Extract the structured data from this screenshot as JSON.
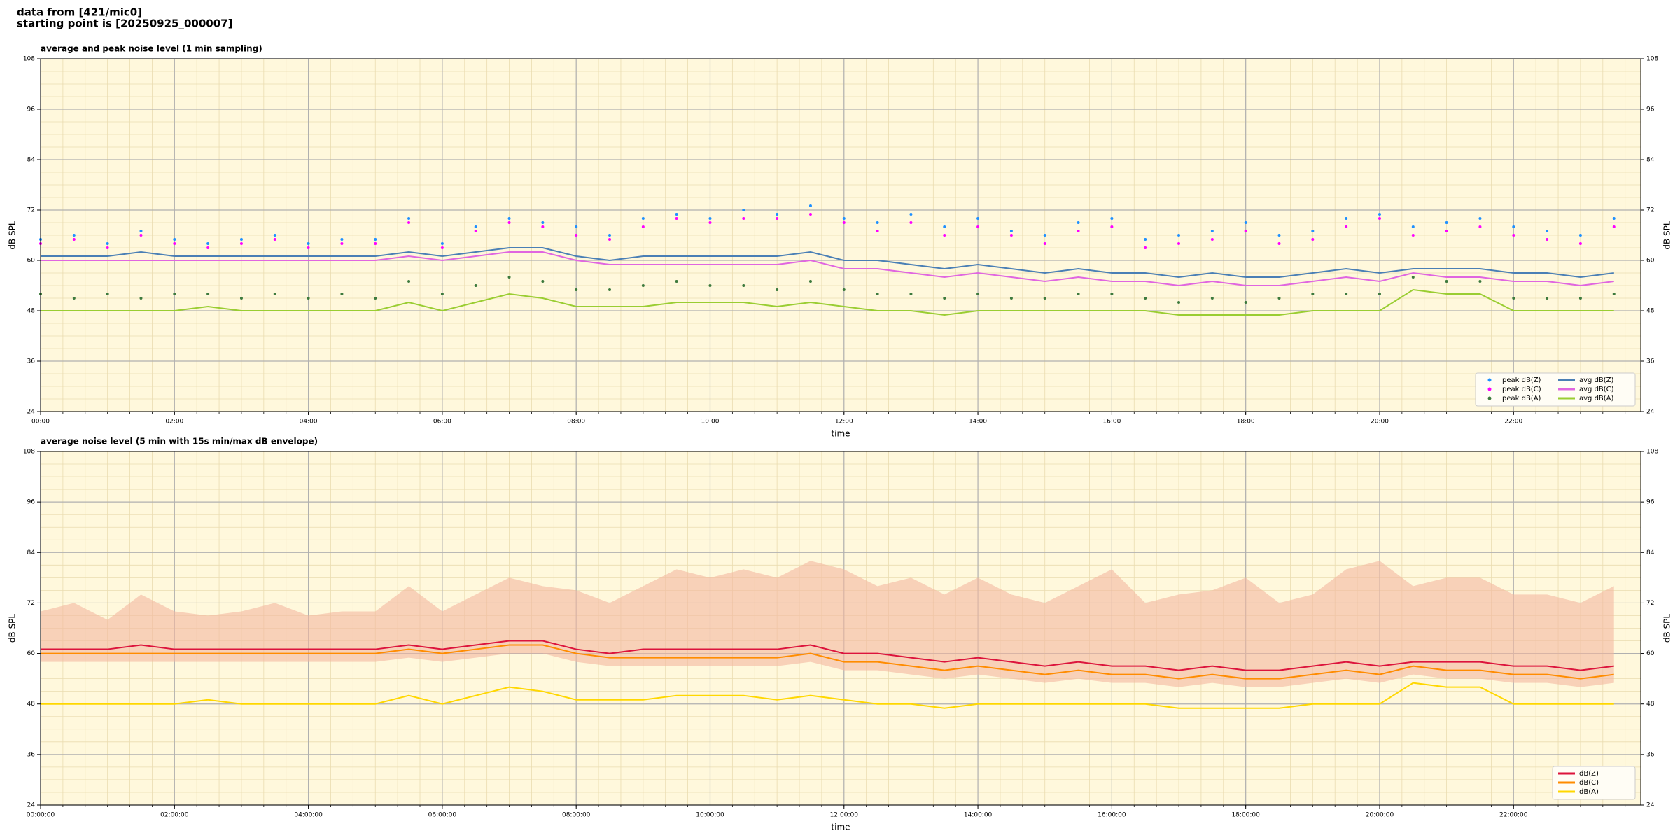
{
  "header": {
    "lines": [
      "data from [421/mic0]",
      "starting point is [20250925_000007]"
    ]
  },
  "chart_data": [
    {
      "type": "line",
      "title": "average and peak noise level (1 min sampling)",
      "xlabel": "time",
      "ylabel": "dB SPL",
      "x": [
        0,
        0.5,
        1,
        1.5,
        2,
        2.5,
        3,
        3.5,
        4,
        4.5,
        5,
        5.5,
        6,
        6.5,
        7,
        7.5,
        8,
        8.5,
        9,
        9.5,
        10,
        10.5,
        11,
        11.5,
        12,
        12.5,
        13,
        13.5,
        14,
        14.5,
        15,
        15.5,
        16,
        16.5,
        17,
        17.5,
        18,
        18.5,
        19,
        19.5,
        20,
        20.5,
        21,
        21.5,
        22,
        22.5,
        23,
        23.5
      ],
      "xlim": [
        0,
        23.9
      ],
      "xticks": [
        {
          "value": 0,
          "label": "00:00"
        },
        {
          "value": 2,
          "label": "02:00"
        },
        {
          "value": 4,
          "label": "04:00"
        },
        {
          "value": 6,
          "label": "06:00"
        },
        {
          "value": 8,
          "label": "08:00"
        },
        {
          "value": 10,
          "label": "10:00"
        },
        {
          "value": 12,
          "label": "12:00"
        },
        {
          "value": 14,
          "label": "14:00"
        },
        {
          "value": 16,
          "label": "16:00"
        },
        {
          "value": 18,
          "label": "18:00"
        },
        {
          "value": 20,
          "label": "20:00"
        },
        {
          "value": 22,
          "label": "22:00"
        }
      ],
      "ylim": [
        24,
        108
      ],
      "yticks": [
        24,
        36,
        48,
        60,
        72,
        84,
        96,
        108
      ],
      "grid": true,
      "minor_grid": true,
      "legend": "lower right",
      "legend_columns": 2,
      "background": "#fff8dc",
      "series": [
        {
          "name": "peak dB(Z)",
          "kind": "scatter",
          "color": "#1e90ff",
          "values": [
            65,
            66,
            64,
            67,
            65,
            64,
            65,
            66,
            64,
            65,
            65,
            70,
            64,
            68,
            70,
            69,
            68,
            66,
            70,
            71,
            70,
            72,
            71,
            73,
            70,
            69,
            71,
            68,
            70,
            67,
            66,
            69,
            70,
            65,
            66,
            67,
            69,
            66,
            67,
            70,
            71,
            68,
            69,
            70,
            68,
            67,
            66,
            70
          ]
        },
        {
          "name": "peak dB(C)",
          "kind": "scatter",
          "color": "#ff00ff",
          "values": [
            64,
            65,
            63,
            66,
            64,
            63,
            64,
            65,
            63,
            64,
            64,
            69,
            63,
            67,
            69,
            68,
            66,
            65,
            68,
            70,
            69,
            70,
            70,
            71,
            69,
            67,
            69,
            66,
            68,
            66,
            64,
            67,
            68,
            63,
            64,
            65,
            67,
            64,
            65,
            68,
            70,
            66,
            67,
            68,
            66,
            65,
            64,
            68
          ]
        },
        {
          "name": "peak dB(A)",
          "kind": "scatter",
          "color": "#3d7a3d",
          "values": [
            52,
            51,
            52,
            51,
            52,
            52,
            51,
            52,
            51,
            52,
            51,
            55,
            52,
            54,
            56,
            55,
            53,
            53,
            54,
            55,
            54,
            54,
            53,
            55,
            53,
            52,
            52,
            51,
            52,
            51,
            51,
            52,
            52,
            51,
            50,
            51,
            50,
            51,
            52,
            52,
            52,
            56,
            55,
            55,
            51,
            51,
            51,
            52
          ]
        },
        {
          "name": "avg dB(Z)",
          "kind": "line",
          "color": "#4a7fb5",
          "values": [
            61,
            61,
            61,
            62,
            61,
            61,
            61,
            61,
            61,
            61,
            61,
            62,
            61,
            62,
            63,
            63,
            61,
            60,
            61,
            61,
            61,
            61,
            61,
            62,
            60,
            60,
            59,
            58,
            59,
            58,
            57,
            58,
            57,
            57,
            56,
            57,
            56,
            56,
            57,
            58,
            57,
            58,
            58,
            58,
            57,
            57,
            56,
            57
          ]
        },
        {
          "name": "avg dB(C)",
          "kind": "line",
          "color": "#e066e0",
          "values": [
            60,
            60,
            60,
            60,
            60,
            60,
            60,
            60,
            60,
            60,
            60,
            61,
            60,
            61,
            62,
            62,
            60,
            59,
            59,
            59,
            59,
            59,
            59,
            60,
            58,
            58,
            57,
            56,
            57,
            56,
            55,
            56,
            55,
            55,
            54,
            55,
            54,
            54,
            55,
            56,
            55,
            57,
            56,
            56,
            55,
            55,
            54,
            55
          ]
        },
        {
          "name": "avg dB(A)",
          "kind": "line",
          "color": "#9acd32",
          "values": [
            48,
            48,
            48,
            48,
            48,
            49,
            48,
            48,
            48,
            48,
            48,
            50,
            48,
            50,
            52,
            51,
            49,
            49,
            49,
            50,
            50,
            50,
            49,
            50,
            49,
            48,
            48,
            47,
            48,
            48,
            48,
            48,
            48,
            48,
            47,
            47,
            47,
            47,
            48,
            48,
            48,
            53,
            52,
            52,
            48,
            48,
            48,
            48
          ]
        }
      ]
    },
    {
      "type": "line",
      "title": "average noise level (5 min with 15s min/max dB envelope)",
      "xlabel": "time",
      "ylabel": "dB SPL",
      "x": [
        0,
        0.5,
        1,
        1.5,
        2,
        2.5,
        3,
        3.5,
        4,
        4.5,
        5,
        5.5,
        6,
        6.5,
        7,
        7.5,
        8,
        8.5,
        9,
        9.5,
        10,
        10.5,
        11,
        11.5,
        12,
        12.5,
        13,
        13.5,
        14,
        14.5,
        15,
        15.5,
        16,
        16.5,
        17,
        17.5,
        18,
        18.5,
        19,
        19.5,
        20,
        20.5,
        21,
        21.5,
        22,
        22.5,
        23,
        23.5
      ],
      "xlim": [
        0,
        23.9
      ],
      "xticks": [
        {
          "value": 0,
          "label": "00:00:00"
        },
        {
          "value": 2,
          "label": "02:00:00"
        },
        {
          "value": 4,
          "label": "04:00:00"
        },
        {
          "value": 6,
          "label": "06:00:00"
        },
        {
          "value": 8,
          "label": "08:00:00"
        },
        {
          "value": 10,
          "label": "10:00:00"
        },
        {
          "value": 12,
          "label": "12:00:00"
        },
        {
          "value": 14,
          "label": "14:00:00"
        },
        {
          "value": 16,
          "label": "16:00:00"
        },
        {
          "value": 18,
          "label": "18:00:00"
        },
        {
          "value": 20,
          "label": "20:00:00"
        },
        {
          "value": 22,
          "label": "22:00:00"
        }
      ],
      "ylim": [
        24,
        108
      ],
      "yticks": [
        24,
        36,
        48,
        60,
        72,
        84,
        96,
        108
      ],
      "grid": true,
      "minor_grid": true,
      "legend": "lower right",
      "legend_columns": 1,
      "background": "#fff8dc",
      "envelope": {
        "color": "#f4b8a0",
        "upper": [
          70,
          72,
          68,
          74,
          70,
          69,
          70,
          72,
          69,
          70,
          70,
          76,
          70,
          74,
          78,
          76,
          75,
          72,
          76,
          80,
          78,
          80,
          78,
          82,
          80,
          76,
          78,
          74,
          78,
          74,
          72,
          76,
          80,
          72,
          74,
          75,
          78,
          72,
          74,
          80,
          82,
          76,
          78,
          78,
          74,
          74,
          72,
          76
        ],
        "lower": [
          58,
          58,
          58,
          58,
          58,
          58,
          58,
          58,
          58,
          58,
          58,
          59,
          58,
          59,
          60,
          60,
          58,
          57,
          57,
          57,
          57,
          57,
          57,
          58,
          56,
          56,
          55,
          54,
          55,
          54,
          53,
          54,
          53,
          53,
          52,
          53,
          52,
          52,
          53,
          54,
          53,
          55,
          54,
          54,
          53,
          53,
          52,
          53
        ]
      },
      "series": [
        {
          "name": "dB(Z)",
          "kind": "line",
          "color": "#dc143c",
          "values": [
            61,
            61,
            61,
            62,
            61,
            61,
            61,
            61,
            61,
            61,
            61,
            62,
            61,
            62,
            63,
            63,
            61,
            60,
            61,
            61,
            61,
            61,
            61,
            62,
            60,
            60,
            59,
            58,
            59,
            58,
            57,
            58,
            57,
            57,
            56,
            57,
            56,
            56,
            57,
            58,
            57,
            58,
            58,
            58,
            57,
            57,
            56,
            57
          ]
        },
        {
          "name": "dB(C)",
          "kind": "line",
          "color": "#ff8c00",
          "values": [
            60,
            60,
            60,
            60,
            60,
            60,
            60,
            60,
            60,
            60,
            60,
            61,
            60,
            61,
            62,
            62,
            60,
            59,
            59,
            59,
            59,
            59,
            59,
            60,
            58,
            58,
            57,
            56,
            57,
            56,
            55,
            56,
            55,
            55,
            54,
            55,
            54,
            54,
            55,
            56,
            55,
            57,
            56,
            56,
            55,
            55,
            54,
            55
          ]
        },
        {
          "name": "dB(A)",
          "kind": "line",
          "color": "#ffd700",
          "values": [
            48,
            48,
            48,
            48,
            48,
            49,
            48,
            48,
            48,
            48,
            48,
            50,
            48,
            50,
            52,
            51,
            49,
            49,
            49,
            50,
            50,
            50,
            49,
            50,
            49,
            48,
            48,
            47,
            48,
            48,
            48,
            48,
            48,
            48,
            47,
            47,
            47,
            47,
            48,
            48,
            48,
            53,
            52,
            52,
            48,
            48,
            48,
            48
          ]
        }
      ]
    }
  ]
}
